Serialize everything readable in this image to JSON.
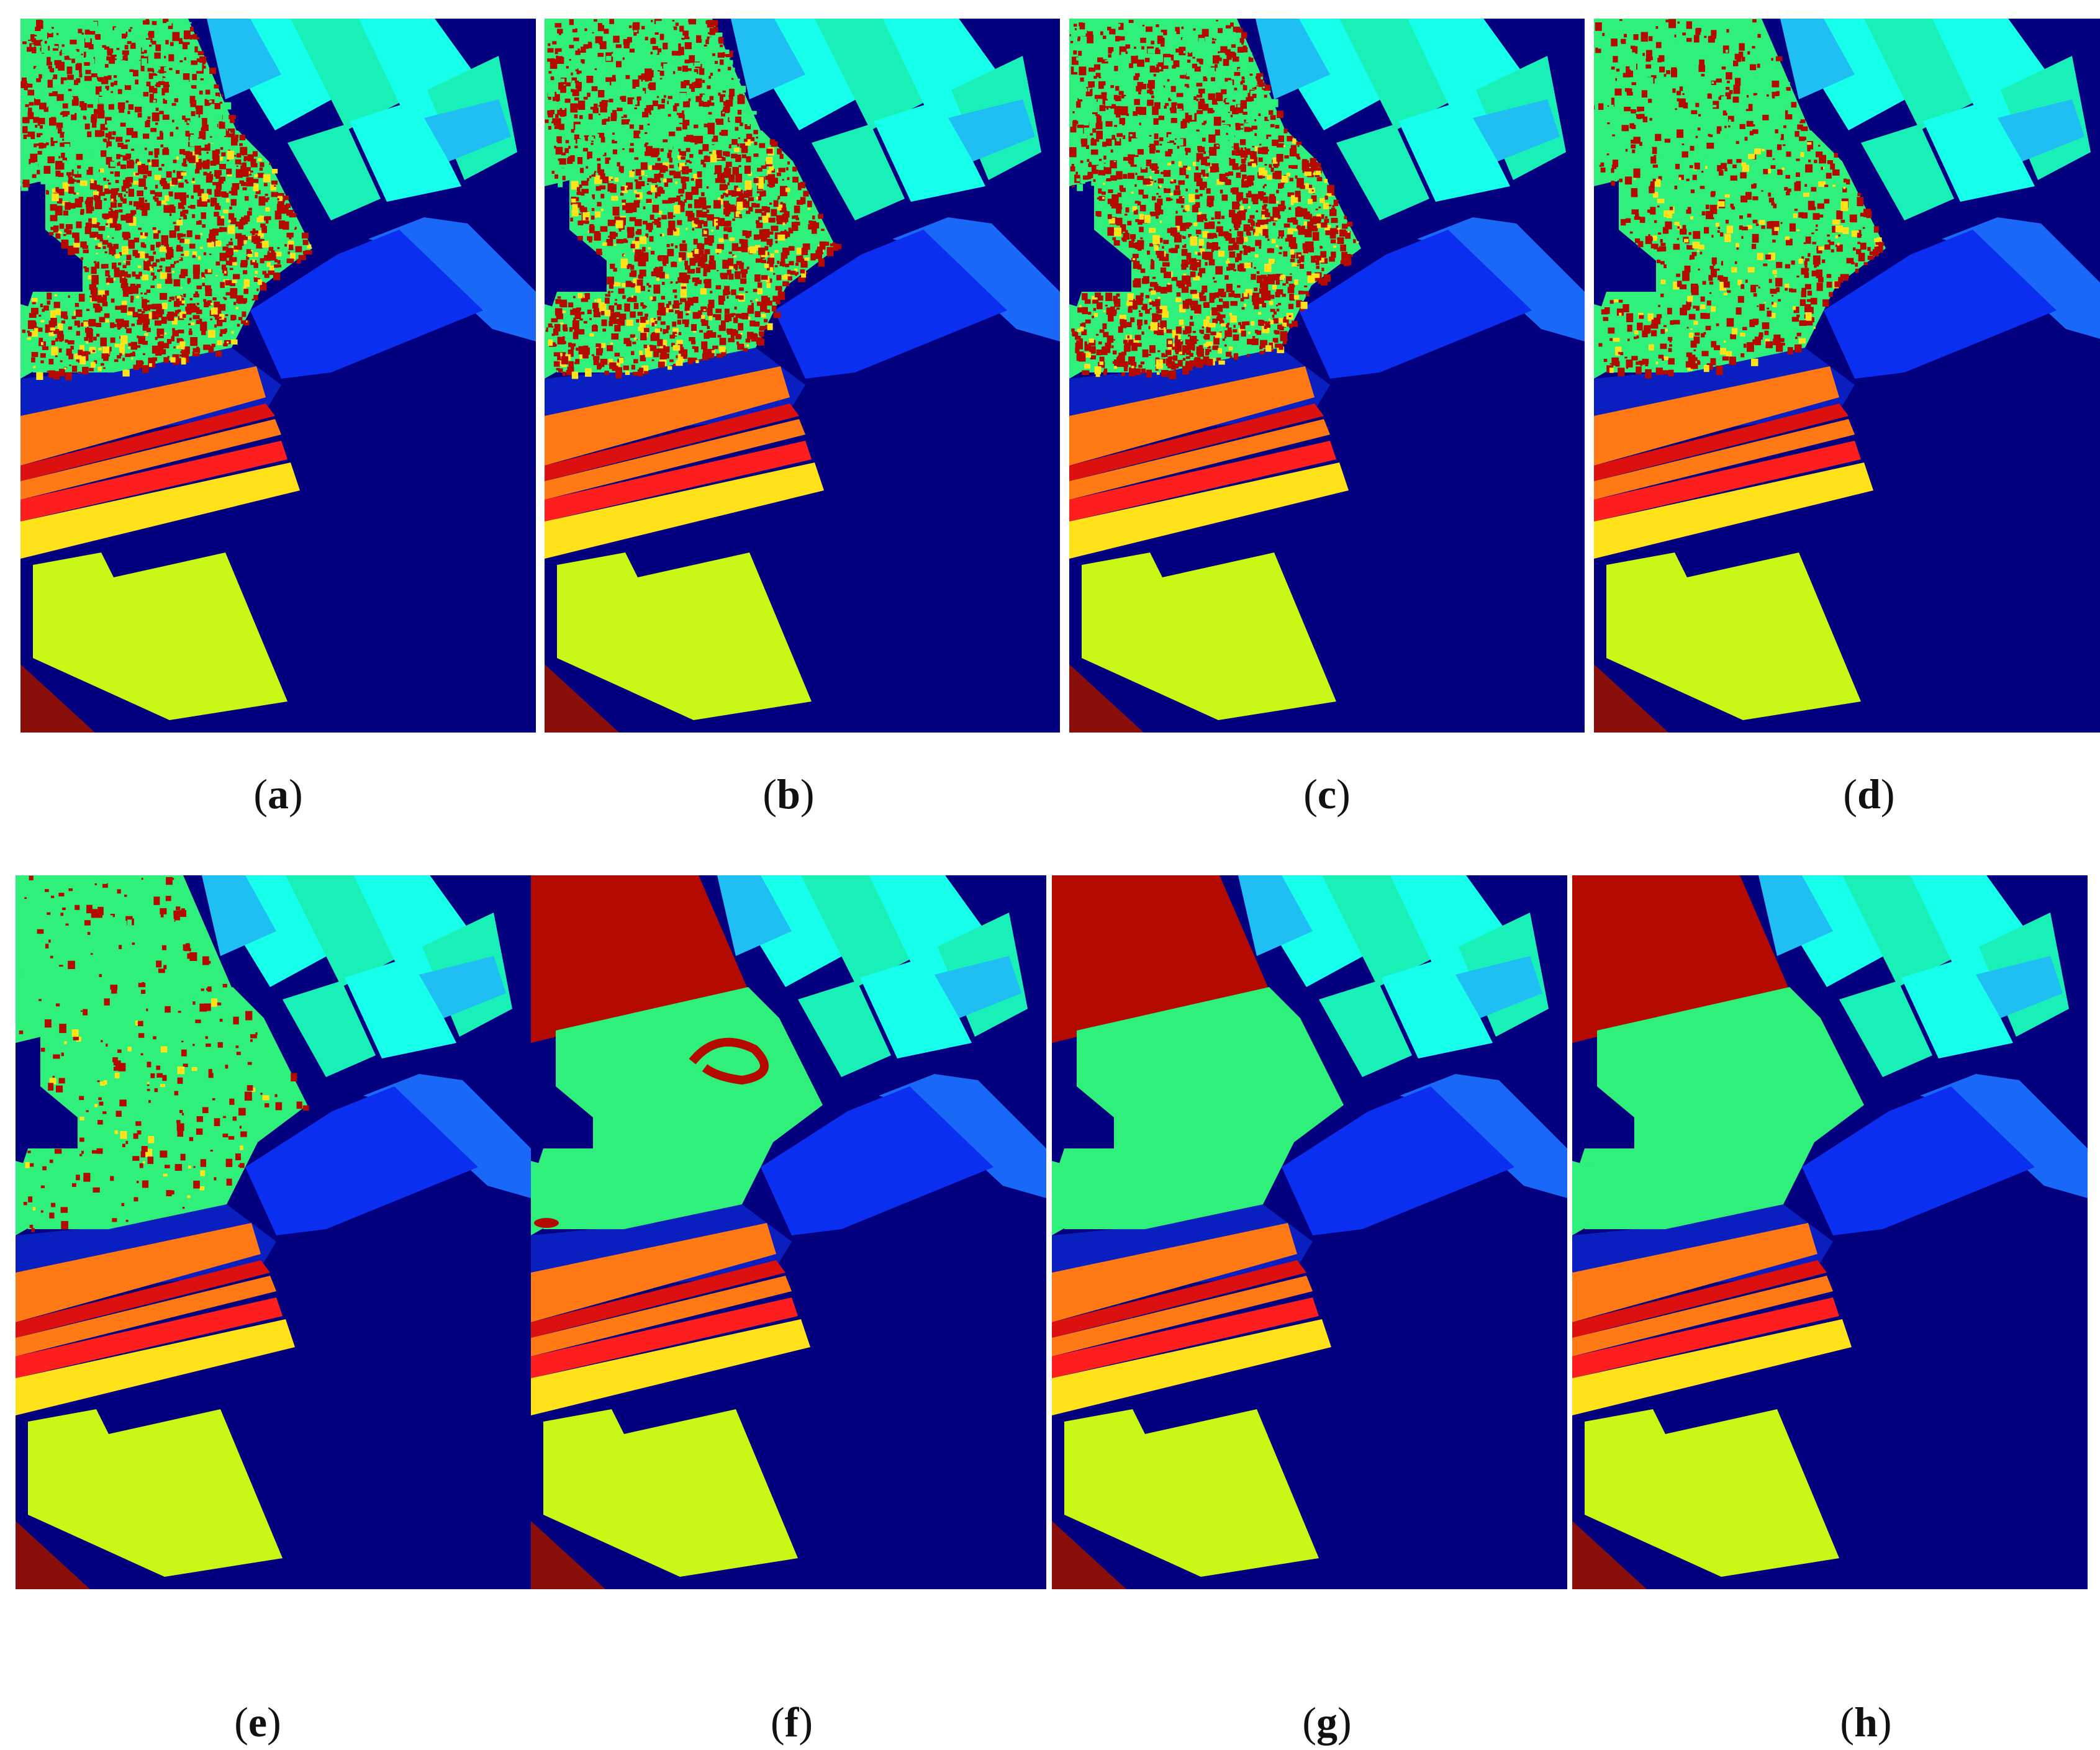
{
  "figure": {
    "panels": [
      {
        "label": "a",
        "noise": "high",
        "red_field_clean": false,
        "field_arc": false
      },
      {
        "label": "b",
        "noise": "high",
        "red_field_clean": false,
        "field_arc": false
      },
      {
        "label": "c",
        "noise": "high",
        "red_field_clean": false,
        "field_arc": false
      },
      {
        "label": "d",
        "noise": "medium",
        "red_field_clean": false,
        "field_arc": false
      },
      {
        "label": "e",
        "noise": "low",
        "red_field_clean": false,
        "field_arc": false
      },
      {
        "label": "f",
        "noise": "none",
        "red_field_clean": true,
        "field_arc": true
      },
      {
        "label": "g",
        "noise": "none",
        "red_field_clean": true,
        "field_arc": false
      },
      {
        "label": "h",
        "noise": "none",
        "red_field_clean": true,
        "field_arc": false
      }
    ],
    "colors": {
      "background": "#02007f",
      "road": "#0a1fbf",
      "dark_red": "#b40a00",
      "green": "#2ff07a",
      "cyan": "#16ffea",
      "teal": "#19f0b8",
      "light_blue": "#1fbff4",
      "blue_field": "#0b2ff0",
      "blue_strip": "#1a68f7",
      "orange": "#ff7a14",
      "red_stripe": "#ff1e1e",
      "deep_red_stripe": "#dd1010",
      "yellow": "#ffe21a",
      "lime": "#c9f716",
      "maroon": "#8a0f0a"
    }
  }
}
